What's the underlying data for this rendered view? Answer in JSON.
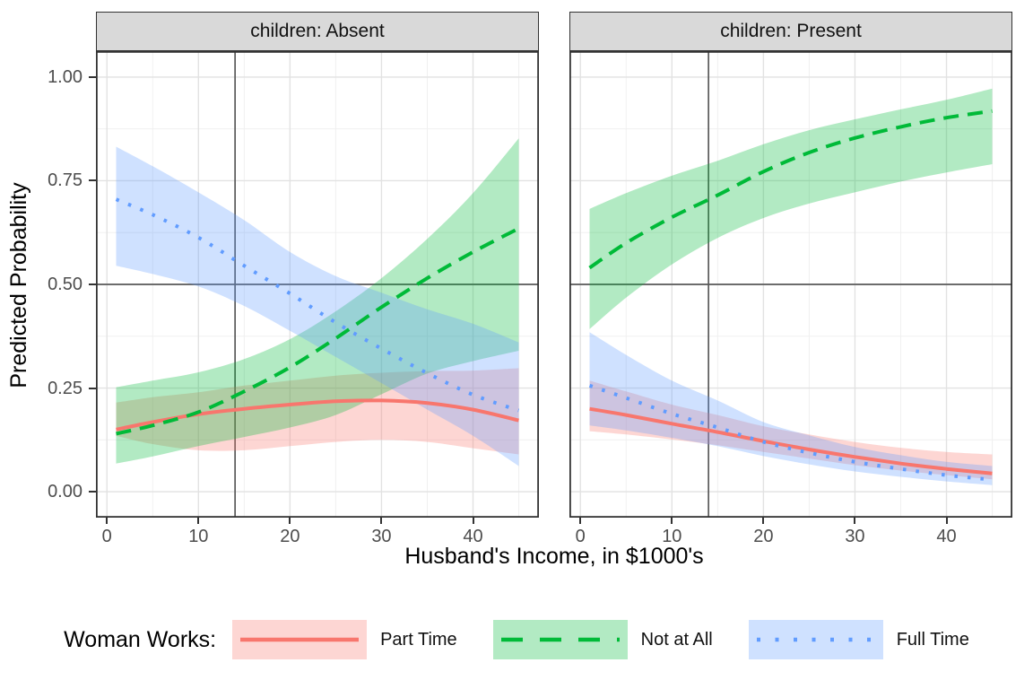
{
  "chart_data": {
    "type": "line",
    "title": "",
    "xlabel": "Husband's Income, in $1000's",
    "ylabel": "Predicted Probability",
    "grid": true,
    "legend_position": "bottom",
    "x": [
      1,
      5,
      10,
      15,
      20,
      25,
      30,
      35,
      40,
      45
    ],
    "xlim": [
      -1.2,
      47.2
    ],
    "ylim": [
      -0.0625,
      1.0625
    ],
    "x_ticks": [
      {
        "label": "0",
        "value": 0
      },
      {
        "label": "10",
        "value": 10
      },
      {
        "label": "20",
        "value": 20
      },
      {
        "label": "30",
        "value": 30
      },
      {
        "label": "40",
        "value": 40
      }
    ],
    "y_ticks": [
      {
        "label": "0.00",
        "value": 0
      },
      {
        "label": "0.25",
        "value": 0.25
      },
      {
        "label": "0.50",
        "value": 0.5
      },
      {
        "label": "0.75",
        "value": 0.75
      },
      {
        "label": "1.00",
        "value": 1
      }
    ],
    "x_minor": [
      5,
      15,
      25,
      35,
      45
    ],
    "y_minor": [
      0.125,
      0.375,
      0.625,
      0.875
    ],
    "reference_lines": {
      "hline_y": 0.5,
      "vline_x": 14
    },
    "facets": [
      {
        "label": "children: Absent",
        "series": [
          {
            "name": "Part Time",
            "linetype": "solid",
            "color": "#F8766D",
            "fill": "rgba(248,118,109,0.3)",
            "y": [
              0.15,
              0.168,
              0.187,
              0.2,
              0.21,
              0.218,
              0.22,
              0.214,
              0.198,
              0.172
            ],
            "lo": [
              0.135,
              0.115,
              0.1,
              0.1,
              0.11,
              0.12,
              0.125,
              0.12,
              0.105,
              0.09
            ],
            "hi": [
              0.215,
              0.228,
              0.24,
              0.256,
              0.268,
              0.28,
              0.287,
              0.291,
              0.292,
              0.298
            ]
          },
          {
            "name": "Not at All",
            "linetype": "dashed",
            "color": "#00BA38",
            "fill": "rgba(0,186,56,0.3)",
            "y": [
              0.14,
              0.16,
              0.192,
              0.242,
              0.3,
              0.37,
              0.445,
              0.515,
              0.578,
              0.635
            ],
            "lo": [
              0.068,
              0.085,
              0.11,
              0.132,
              0.155,
              0.185,
              0.235,
              0.285,
              0.315,
              0.34
            ],
            "hi": [
              0.252,
              0.268,
              0.288,
              0.32,
              0.368,
              0.435,
              0.515,
              0.61,
              0.72,
              0.852
            ]
          },
          {
            "name": "Full Time",
            "linetype": "dotted",
            "color": "#619CFF",
            "fill": "rgba(97,156,255,0.3)",
            "y": [
              0.705,
              0.668,
              0.613,
              0.545,
              0.478,
              0.408,
              0.345,
              0.286,
              0.234,
              0.196
            ],
            "lo": [
              0.545,
              0.525,
              0.495,
              0.448,
              0.388,
              0.325,
              0.262,
              0.198,
              0.135,
              0.062
            ],
            "hi": [
              0.832,
              0.785,
              0.722,
              0.655,
              0.578,
              0.52,
              0.48,
              0.44,
              0.405,
              0.36
            ]
          }
        ]
      },
      {
        "label": "children: Present",
        "series": [
          {
            "name": "Part Time",
            "linetype": "solid",
            "color": "#F8766D",
            "fill": "rgba(248,118,109,0.3)",
            "y": [
              0.2,
              0.185,
              0.164,
              0.144,
              0.122,
              0.102,
              0.084,
              0.068,
              0.055,
              0.044
            ],
            "lo": [
              0.146,
              0.138,
              0.126,
              0.112,
              0.096,
              0.08,
              0.064,
              0.051,
              0.04,
              0.03
            ],
            "hi": [
              0.268,
              0.242,
              0.21,
              0.185,
              0.158,
              0.138,
              0.12,
              0.106,
              0.096,
              0.09
            ]
          },
          {
            "name": "Not at All",
            "linetype": "dashed",
            "color": "#00BA38",
            "fill": "rgba(0,186,56,0.3)",
            "y": [
              0.54,
              0.6,
              0.662,
              0.715,
              0.772,
              0.818,
              0.853,
              0.88,
              0.902,
              0.918
            ],
            "lo": [
              0.392,
              0.468,
              0.548,
              0.612,
              0.66,
              0.695,
              0.722,
              0.748,
              0.77,
              0.79
            ],
            "hi": [
              0.682,
              0.72,
              0.762,
              0.798,
              0.838,
              0.872,
              0.898,
              0.922,
              0.945,
              0.972
            ]
          },
          {
            "name": "Full Time",
            "linetype": "dotted",
            "color": "#619CFF",
            "fill": "rgba(97,156,255,0.3)",
            "y": [
              0.256,
              0.226,
              0.188,
              0.155,
              0.12,
              0.094,
              0.072,
              0.055,
              0.04,
              0.029
            ],
            "lo": [
              0.16,
              0.148,
              0.13,
              0.11,
              0.086,
              0.066,
              0.049,
              0.036,
              0.025,
              0.016
            ],
            "hi": [
              0.385,
              0.33,
              0.268,
              0.22,
              0.168,
              0.136,
              0.108,
              0.088,
              0.072,
              0.062
            ]
          }
        ]
      }
    ]
  },
  "legend": {
    "title": "Woman Works:",
    "items": [
      {
        "label": "Part Time",
        "linetype": "solid",
        "color": "#F8766D",
        "fill": "rgba(248,118,109,0.3)"
      },
      {
        "label": "Not at All",
        "linetype": "dashed",
        "color": "#00BA38",
        "fill": "rgba(0,186,56,0.3)"
      },
      {
        "label": "Full Time",
        "linetype": "dotted",
        "color": "#619CFF",
        "fill": "rgba(97,156,255,0.3)"
      }
    ]
  },
  "theme": {
    "strip_bg": "#D9D9D9",
    "panel_border": "#333333",
    "grid_major": "#E2E2E2",
    "grid_minor": "#F0F0F0",
    "ref_line": "#5A5A5A",
    "tick_text": "#4D4D4D"
  }
}
